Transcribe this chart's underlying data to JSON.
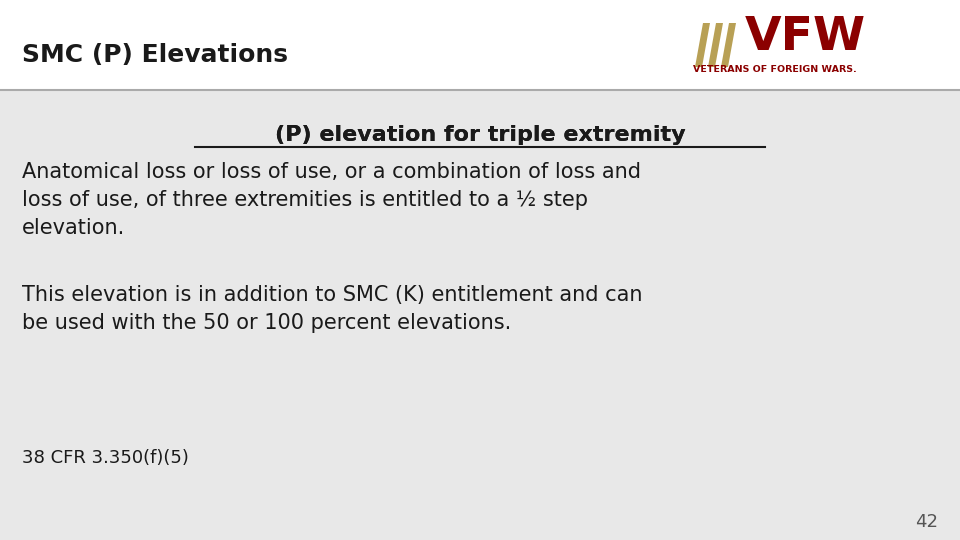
{
  "title": "SMC (P) Elevations",
  "header_bg": "#ffffff",
  "content_bg": "#e8e8e8",
  "divider_color": "#aaaaaa",
  "title_fontsize": 18,
  "title_color": "#1a1a1a",
  "subtitle": "(P) elevation for triple extremity",
  "subtitle_fontsize": 16,
  "subtitle_color": "#1a1a1a",
  "paragraph1": "Anatomical loss or loss of use, or a combination of loss and\nloss of use, of three extremities is entitled to a ½ step\nelevation.",
  "paragraph2": "This elevation is in addition to SMC (K) entitlement and can\nbe used with the 50 or 100 percent elevations.",
  "citation": "38 CFR 3.350(f)(5)",
  "page_number": "42",
  "text_fontsize": 15,
  "citation_fontsize": 13,
  "page_fontsize": 13,
  "vfw_text": "VFW",
  "vfw_subtitle": "VETERANS OF FOREIGN WARS.",
  "vfw_color": "#8b0000",
  "vfw_stripe_color": "#b8a055"
}
